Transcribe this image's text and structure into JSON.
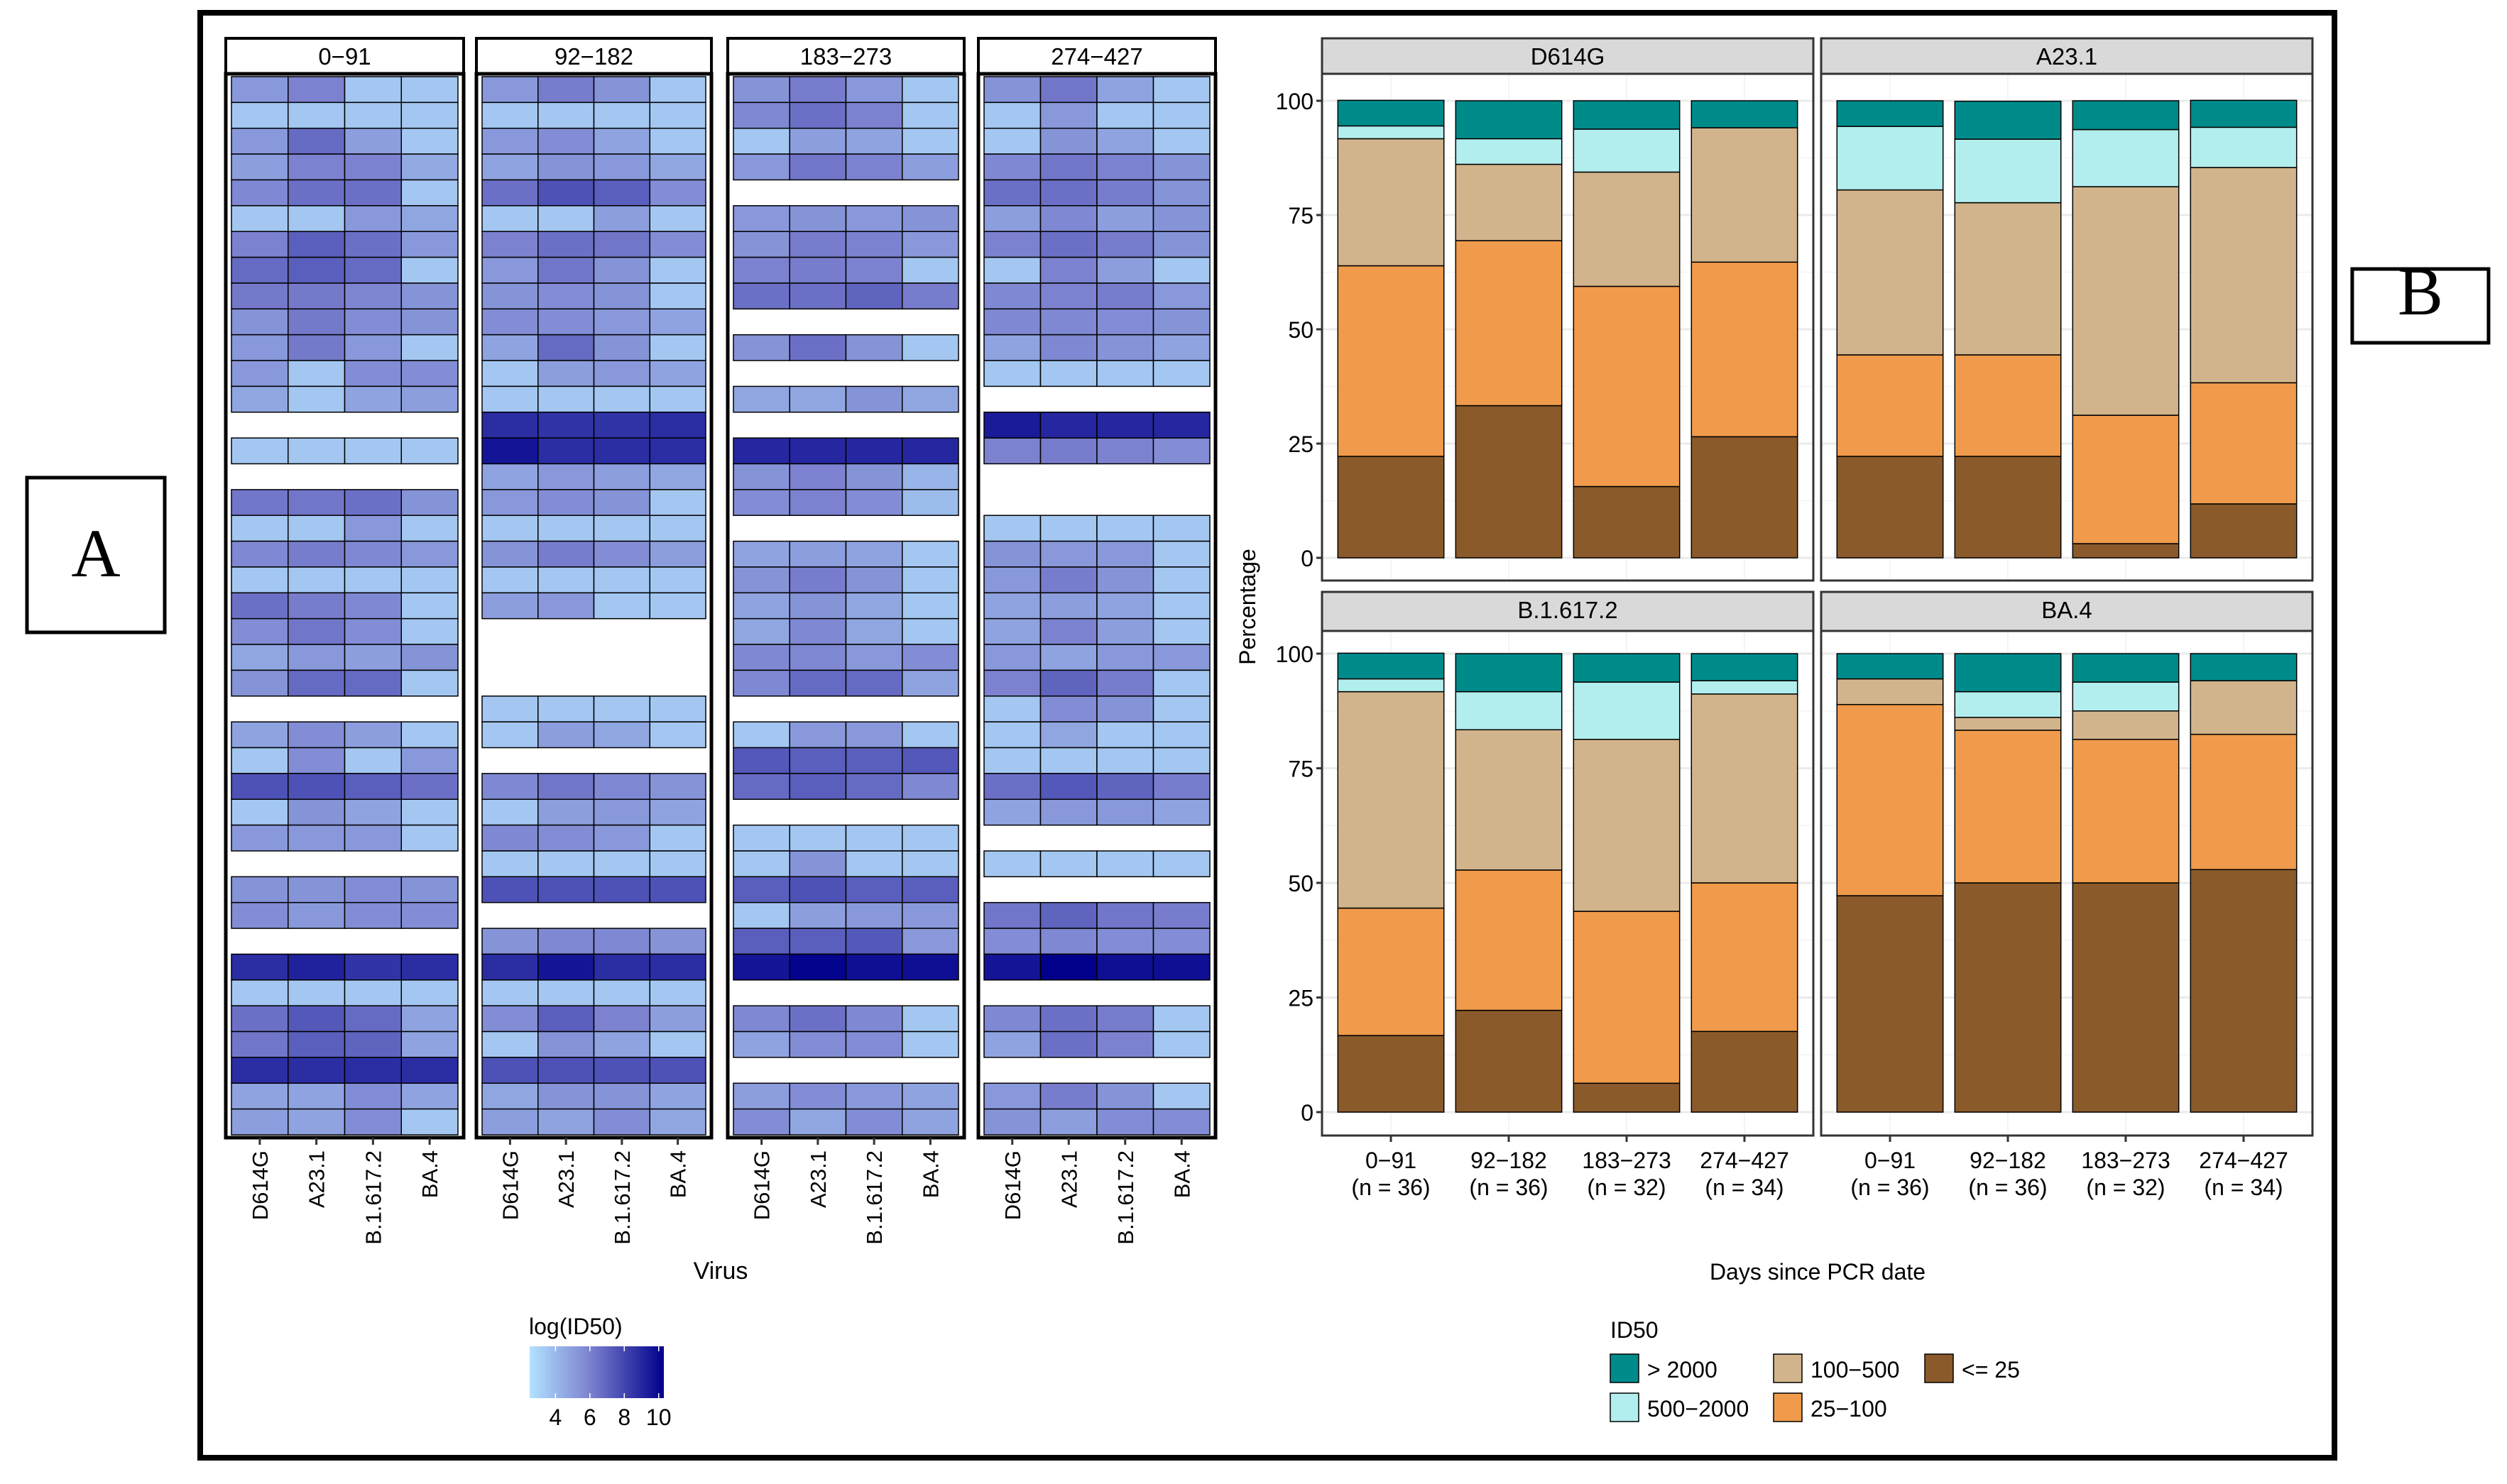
{
  "labels": {
    "panel_a": "A",
    "panel_b": "B"
  },
  "chart_data": [
    {
      "type": "heatmap",
      "panel": "A",
      "facets": [
        "0−91",
        "92−182",
        "183−273",
        "274−427"
      ],
      "columns": [
        "D614G",
        "A23.1",
        "B.1.617.2",
        "BA.4"
      ],
      "xlabel": "Virus",
      "ylabel": "",
      "legend": {
        "title": "log(ID50)",
        "ticks": [
          4,
          6,
          8,
          10
        ],
        "range": [
          2.5,
          10.3
        ],
        "low_color": "#b2e2ff",
        "high_color": "#00008b",
        "placement": "bottom"
      },
      "values": [
        [
          [
            5.2,
            6.0,
            3.5,
            3.5
          ],
          [
            3.5,
            3.5,
            3.5,
            3.5
          ],
          [
            5.2,
            6.8,
            5.0,
            3.5
          ],
          [
            5.0,
            6.0,
            6.0,
            4.6
          ],
          [
            5.8,
            6.6,
            6.6,
            3.5
          ],
          [
            3.5,
            3.5,
            5.2,
            4.7
          ],
          [
            6.0,
            7.2,
            6.6,
            5.2
          ],
          [
            6.8,
            7.2,
            6.8,
            3.5
          ],
          [
            6.3,
            6.3,
            5.9,
            5.4
          ],
          [
            5.4,
            6.3,
            5.6,
            5.4
          ],
          [
            5.2,
            6.3,
            5.2,
            3.5
          ],
          [
            5.2,
            3.5,
            5.6,
            5.6
          ],
          [
            4.7,
            3.5,
            4.8,
            5.0
          ],
          null,
          [
            3.5,
            3.5,
            3.5,
            3.5
          ],
          null,
          [
            6.4,
            6.4,
            6.6,
            5.4
          ],
          [
            3.5,
            3.5,
            5.2,
            3.5
          ],
          [
            5.8,
            6.2,
            5.8,
            5.2
          ],
          [
            3.5,
            3.5,
            3.5,
            3.5
          ],
          [
            6.6,
            6.2,
            5.8,
            3.5
          ],
          [
            5.6,
            6.4,
            5.6,
            3.5
          ],
          [
            4.7,
            5.2,
            5.0,
            5.4
          ],
          [
            5.4,
            6.8,
            6.8,
            3.5
          ],
          null,
          [
            4.8,
            5.6,
            5.0,
            3.5
          ],
          [
            3.5,
            5.6,
            3.5,
            5.2
          ],
          [
            7.6,
            7.6,
            7.2,
            6.6
          ],
          [
            3.5,
            5.4,
            4.8,
            3.5
          ],
          [
            5.2,
            5.2,
            5.2,
            3.5
          ],
          null,
          [
            5.4,
            5.4,
            5.6,
            5.4
          ],
          [
            5.6,
            5.2,
            5.6,
            5.6
          ],
          null,
          [
            8.8,
            9.2,
            8.6,
            8.8
          ],
          [
            3.5,
            3.5,
            3.5,
            3.5
          ],
          [
            6.6,
            7.4,
            6.8,
            4.8
          ],
          [
            6.4,
            7.2,
            7.0,
            4.8
          ],
          [
            8.8,
            8.8,
            8.8,
            8.8
          ],
          [
            4.8,
            4.8,
            5.6,
            4.8
          ],
          [
            5.0,
            4.8,
            5.6,
            3.5
          ]
        ],
        [
          [
            5.2,
            6.2,
            5.4,
            3.5
          ],
          [
            3.5,
            3.5,
            3.5,
            3.5
          ],
          [
            5.2,
            5.6,
            4.8,
            3.5
          ],
          [
            4.8,
            5.4,
            5.2,
            4.7
          ],
          [
            6.6,
            7.6,
            7.2,
            5.6
          ],
          [
            3.5,
            3.5,
            5.0,
            3.5
          ],
          [
            6.0,
            6.6,
            6.4,
            5.6
          ],
          [
            5.2,
            6.4,
            5.4,
            3.5
          ],
          [
            5.4,
            5.6,
            5.4,
            3.5
          ],
          [
            5.6,
            5.6,
            5.2,
            4.8
          ],
          [
            4.8,
            6.8,
            5.4,
            3.5
          ],
          [
            3.5,
            5.0,
            5.2,
            4.8
          ],
          [
            3.5,
            3.5,
            3.5,
            3.5
          ],
          [
            8.8,
            8.6,
            8.6,
            8.8
          ],
          [
            9.6,
            8.8,
            8.8,
            8.8
          ],
          [
            4.8,
            5.2,
            5.0,
            4.7
          ],
          [
            5.2,
            5.6,
            5.4,
            3.5
          ],
          [
            3.5,
            3.5,
            3.5,
            3.5
          ],
          [
            5.4,
            6.2,
            5.6,
            5.0
          ],
          [
            3.5,
            3.5,
            3.5,
            3.5
          ],
          [
            5.0,
            5.2,
            3.5,
            3.5
          ],
          null,
          null,
          null,
          [
            3.5,
            3.5,
            3.5,
            3.5
          ],
          [
            3.5,
            5.0,
            4.7,
            3.5
          ],
          null,
          [
            5.8,
            6.4,
            5.8,
            5.4
          ],
          [
            3.5,
            5.0,
            5.2,
            4.8
          ],
          [
            5.8,
            5.6,
            5.2,
            3.5
          ],
          [
            3.5,
            3.5,
            3.5,
            3.5
          ],
          [
            7.6,
            7.6,
            7.6,
            7.6
          ],
          null,
          [
            5.4,
            5.8,
            5.8,
            5.4
          ],
          [
            8.8,
            9.6,
            8.8,
            8.8
          ],
          [
            3.5,
            3.5,
            3.5,
            3.5
          ],
          [
            5.6,
            7.2,
            6.0,
            5.0
          ],
          [
            3.5,
            5.4,
            4.8,
            3.5
          ],
          [
            7.6,
            7.6,
            7.6,
            7.6
          ],
          [
            4.7,
            5.4,
            5.4,
            4.8
          ],
          [
            5.0,
            4.8,
            5.6,
            4.7
          ]
        ],
        [
          [
            5.4,
            6.2,
            5.2,
            3.5
          ],
          [
            5.8,
            6.6,
            6.0,
            3.5
          ],
          [
            3.5,
            5.0,
            4.8,
            3.5
          ],
          [
            5.2,
            6.4,
            6.0,
            5.0
          ],
          null,
          [
            5.2,
            5.4,
            5.2,
            5.4
          ],
          [
            5.4,
            6.2,
            6.0,
            5.2
          ],
          [
            6.0,
            6.2,
            6.0,
            3.5
          ],
          [
            6.6,
            6.6,
            7.0,
            6.2
          ],
          null,
          [
            5.4,
            6.6,
            5.4,
            3.5
          ],
          null,
          [
            4.7,
            4.7,
            5.4,
            4.7
          ],
          null,
          [
            9.0,
            9.0,
            9.0,
            9.0
          ],
          [
            5.4,
            6.0,
            5.4,
            4.2
          ],
          [
            5.6,
            6.0,
            5.6,
            3.9
          ],
          null,
          [
            4.8,
            5.0,
            4.8,
            3.5
          ],
          [
            5.4,
            6.2,
            5.4,
            3.5
          ],
          [
            4.8,
            5.4,
            4.7,
            3.5
          ],
          [
            4.7,
            5.8,
            4.7,
            3.5
          ],
          [
            5.8,
            5.8,
            5.2,
            5.6
          ],
          [
            5.8,
            6.8,
            6.8,
            4.8
          ],
          null,
          [
            3.5,
            5.2,
            5.2,
            3.5
          ],
          [
            7.4,
            7.2,
            7.2,
            7.4
          ],
          [
            6.8,
            7.2,
            6.8,
            5.8
          ],
          null,
          [
            3.5,
            3.5,
            3.5,
            3.5
          ],
          [
            3.5,
            5.4,
            3.5,
            3.5
          ],
          [
            7.2,
            7.6,
            7.2,
            7.2
          ],
          [
            3.5,
            5.0,
            5.2,
            5.2
          ],
          [
            7.2,
            7.2,
            7.4,
            5.2
          ],
          [
            9.6,
            10.2,
            9.8,
            9.8
          ],
          null,
          [
            5.8,
            6.6,
            5.8,
            3.5
          ],
          [
            4.8,
            5.6,
            5.6,
            3.5
          ],
          null,
          [
            5.0,
            5.6,
            5.2,
            4.8
          ],
          [
            5.6,
            4.7,
            5.6,
            4.8
          ]
        ],
        [
          [
            5.4,
            6.4,
            4.8,
            3.5
          ],
          [
            3.5,
            5.2,
            3.5,
            3.5
          ],
          [
            3.5,
            5.4,
            4.8,
            3.5
          ],
          [
            5.8,
            6.4,
            6.0,
            5.4
          ],
          [
            6.6,
            6.6,
            6.2,
            5.4
          ],
          [
            5.0,
            5.8,
            5.0,
            5.4
          ],
          [
            6.0,
            6.6,
            6.2,
            5.4
          ],
          [
            3.5,
            6.0,
            5.0,
            3.5
          ],
          [
            5.8,
            6.0,
            6.2,
            5.2
          ],
          [
            5.8,
            5.8,
            5.6,
            5.4
          ],
          [
            4.8,
            5.8,
            5.4,
            4.8
          ],
          [
            3.5,
            3.5,
            3.5,
            3.5
          ],
          null,
          [
            9.4,
            9.0,
            9.0,
            9.0
          ],
          [
            6.0,
            6.2,
            6.0,
            5.6
          ],
          null,
          null,
          [
            3.5,
            3.5,
            3.5,
            3.5
          ],
          [
            5.4,
            5.2,
            5.2,
            3.5
          ],
          [
            5.2,
            6.2,
            5.4,
            3.5
          ],
          [
            4.8,
            5.0,
            4.8,
            3.5
          ],
          [
            4.8,
            6.0,
            5.0,
            3.5
          ],
          [
            5.2,
            4.8,
            5.2,
            5.2
          ],
          [
            6.0,
            7.0,
            6.2,
            3.5
          ],
          [
            3.5,
            5.6,
            5.4,
            3.5
          ],
          [
            3.5,
            4.7,
            3.5,
            3.5
          ],
          [
            3.5,
            3.5,
            3.5,
            3.5
          ],
          [
            6.6,
            7.4,
            7.0,
            6.2
          ],
          [
            4.8,
            5.2,
            5.2,
            4.8
          ],
          null,
          [
            3.5,
            3.5,
            3.5,
            3.5
          ],
          null,
          [
            6.4,
            7.0,
            6.4,
            6.2
          ],
          [
            5.6,
            5.8,
            5.6,
            5.6
          ],
          [
            9.6,
            10.6,
            9.8,
            9.8
          ],
          null,
          [
            5.8,
            6.6,
            6.2,
            3.5
          ],
          [
            4.8,
            6.6,
            6.0,
            3.5
          ],
          null,
          [
            5.2,
            6.2,
            5.4,
            3.5
          ],
          [
            5.4,
            5.0,
            5.6,
            5.6
          ]
        ]
      ]
    },
    {
      "type": "bar",
      "stacked": true,
      "panel": "B",
      "facets": [
        "D614G",
        "A23.1",
        "B.1.617.2",
        "BA.4"
      ],
      "categories": [
        "0−91",
        "92−182",
        "183−273",
        "274−427"
      ],
      "category_n": [
        "(n = 36)",
        "(n = 36)",
        "(n = 32)",
        "(n = 34)"
      ],
      "xlabel": "Days since PCR date",
      "ylabel": "Percentage",
      "ylim": [
        0,
        100
      ],
      "yticks": [
        0,
        25,
        50,
        75,
        100
      ],
      "grid": true,
      "legend": {
        "title": "ID50",
        "placement": "bottom",
        "entries": [
          {
            "key": "gt2000",
            "label": "> 2000",
            "color": "#008b8b"
          },
          {
            "key": "r500_2000",
            "label": "500−2000",
            "color": "#b2eeee"
          },
          {
            "key": "r100_500",
            "label": "100−500",
            "color": "#d2b48c"
          },
          {
            "key": "r25_100",
            "label": "25−100",
            "color": "#ef9b4b"
          },
          {
            "key": "le25",
            "label": "<= 25",
            "color": "#8b5a2b"
          }
        ]
      },
      "stack_order_bottom_to_top": [
        "le25",
        "r25_100",
        "r100_500",
        "r500_2000",
        "gt2000"
      ],
      "series": [
        {
          "facet": "D614G",
          "bars": [
            {
              "le25": 22.2,
              "r25_100": 41.7,
              "r100_500": 27.8,
              "r500_2000": 2.8,
              "gt2000": 5.6
            },
            {
              "le25": 33.3,
              "r25_100": 36.1,
              "r100_500": 16.7,
              "r500_2000": 5.6,
              "gt2000": 8.3
            },
            {
              "le25": 15.6,
              "r25_100": 43.8,
              "r100_500": 25.0,
              "r500_2000": 9.4,
              "gt2000": 6.2
            },
            {
              "le25": 26.5,
              "r25_100": 38.2,
              "r100_500": 29.4,
              "r500_2000": 0.0,
              "gt2000": 5.9
            }
          ]
        },
        {
          "facet": "A23.1",
          "bars": [
            {
              "le25": 22.2,
              "r25_100": 22.2,
              "r100_500": 36.1,
              "r500_2000": 13.9,
              "gt2000": 5.6
            },
            {
              "le25": 22.2,
              "r25_100": 22.2,
              "r100_500": 33.3,
              "r500_2000": 13.9,
              "gt2000": 8.3
            },
            {
              "le25": 3.1,
              "r25_100": 28.1,
              "r100_500": 50.0,
              "r500_2000": 12.5,
              "gt2000": 6.3
            },
            {
              "le25": 11.8,
              "r25_100": 26.5,
              "r100_500": 47.1,
              "r500_2000": 8.8,
              "gt2000": 5.9
            }
          ]
        },
        {
          "facet": "B.1.617.2",
          "bars": [
            {
              "le25": 16.7,
              "r25_100": 27.8,
              "r100_500": 47.2,
              "r500_2000": 2.8,
              "gt2000": 5.6
            },
            {
              "le25": 22.2,
              "r25_100": 30.6,
              "r100_500": 30.6,
              "r500_2000": 8.3,
              "gt2000": 8.3
            },
            {
              "le25": 6.3,
              "r25_100": 37.5,
              "r100_500": 37.5,
              "r500_2000": 12.5,
              "gt2000": 6.2
            },
            {
              "le25": 17.6,
              "r25_100": 32.4,
              "r100_500": 41.2,
              "r500_2000": 2.9,
              "gt2000": 5.9
            }
          ]
        },
        {
          "facet": "BA.4",
          "bars": [
            {
              "le25": 47.2,
              "r25_100": 41.7,
              "r100_500": 5.6,
              "r500_2000": 0.0,
              "gt2000": 5.5
            },
            {
              "le25": 50.0,
              "r25_100": 33.3,
              "r100_500": 2.8,
              "r500_2000": 5.6,
              "gt2000": 8.3
            },
            {
              "le25": 50.0,
              "r25_100": 31.3,
              "r100_500": 6.2,
              "r500_2000": 6.3,
              "gt2000": 6.2
            },
            {
              "le25": 52.9,
              "r25_100": 29.5,
              "r100_500": 11.7,
              "r500_2000": 0.0,
              "gt2000": 5.9
            }
          ]
        }
      ]
    }
  ]
}
